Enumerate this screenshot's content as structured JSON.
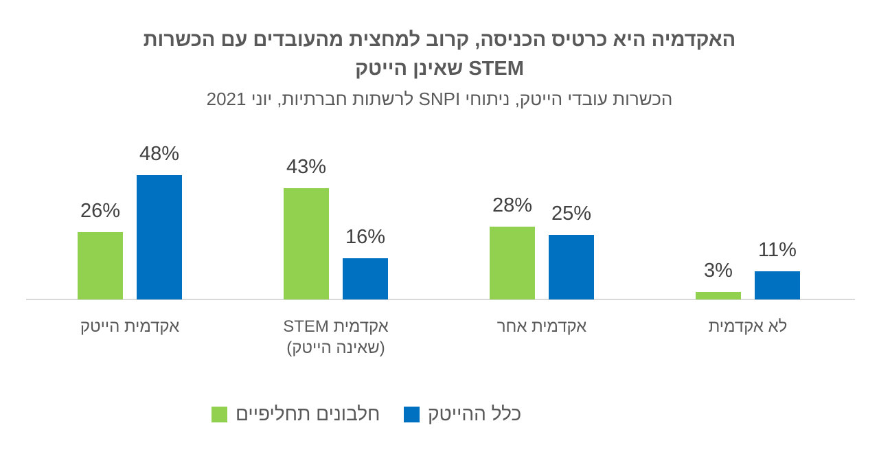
{
  "title": {
    "line1": "האקדמיה היא כרטיס הכניסה, קרוב למחצית מהעובדים עם הכשרות",
    "line2": "STEM שאינן הייטק",
    "subtitle": "הכשרות עובדי הייטק, ניתוחי SNPI לרשתות חברתיות, יוני 2021"
  },
  "colors": {
    "green_series": "#92D050",
    "blue_series": "#0070C0",
    "axis_line": "#D9D9D9",
    "title_text": "#595959",
    "value_label_text": "#404040"
  },
  "chart_data": {
    "type": "bar",
    "direction": "rtl",
    "title": "האקדמיה היא כרטיס הכניסה, קרוב למחצית מהעובדים עם הכשרות STEM שאינן הייטק",
    "subtitle": "הכשרות עובדי הייטק, ניתוחי SNPI לרשתות חברתיות, יוני 2021",
    "categories": [
      "אקדמית הייטק",
      "אקדמית STEM\n(שאינה הייטק)",
      "אקדמית אחר",
      "לא אקדמית"
    ],
    "series": [
      {
        "name": "חלבונים תחליפיים",
        "color": "#92D050",
        "values": [
          26,
          43,
          28,
          3
        ]
      },
      {
        "name": "כלל ההייטק",
        "color": "#0070C0",
        "values": [
          48,
          16,
          25,
          11
        ]
      }
    ],
    "value_suffix": "%",
    "value_labels": [
      "26%",
      "48%",
      "43%",
      "16%",
      "28%",
      "25%",
      "3%",
      "11%"
    ],
    "ylim": [
      0,
      50
    ],
    "gridlines": false,
    "y_axis_visible": false,
    "legend_position": "bottom"
  }
}
